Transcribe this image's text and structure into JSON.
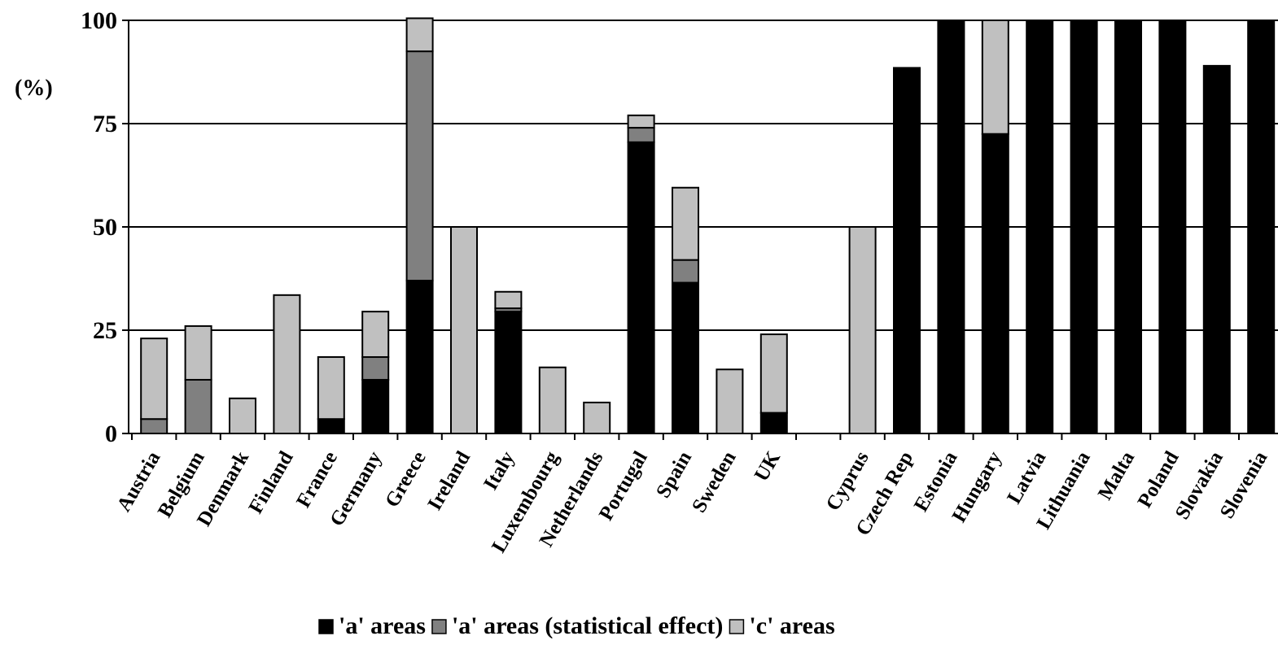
{
  "chart_data": {
    "type": "bar",
    "stacked": true,
    "ylabel": "(%)",
    "ylim": [
      0,
      100
    ],
    "yticks": [
      0,
      25,
      50,
      75,
      100
    ],
    "grid": true,
    "legend_position": "bottom",
    "categories": [
      "Austria",
      "Belgium",
      "Denmark",
      "Finland",
      "France",
      "Germany",
      "Greece",
      "Ireland",
      "Italy",
      "Luxembourg",
      "Netherlands",
      "Portugal",
      "Spain",
      "Sweden",
      "UK",
      "",
      "Cyprus",
      "Czech Rep",
      "Estonia",
      "Hungary",
      "Latvia",
      "Lithuania",
      "Malta",
      "Poland",
      "Slovakia",
      "Slovenia"
    ],
    "series": [
      {
        "name": "'a' areas",
        "color": "#000000",
        "values": [
          0,
          0,
          0,
          0,
          3.5,
          13,
          37,
          0,
          29.5,
          0,
          0,
          70.5,
          36.5,
          0,
          5,
          0,
          0,
          88.5,
          100,
          72.5,
          100,
          100,
          100,
          100,
          89,
          100
        ]
      },
      {
        "name": "'a' areas (statistical effect)",
        "color": "#808080",
        "values": [
          3.5,
          13,
          0,
          0,
          0,
          5.5,
          55.5,
          0,
          0.8,
          0,
          0,
          3.5,
          5.5,
          0,
          0,
          0,
          0,
          0,
          0,
          0,
          0,
          0,
          0,
          0,
          0,
          0
        ]
      },
      {
        "name": "'c' areas",
        "color": "#c0c0c0",
        "values": [
          19.5,
          13,
          8.5,
          33.5,
          15,
          11,
          8,
          50,
          4,
          16,
          7.5,
          3,
          17.5,
          15.5,
          19,
          0,
          50,
          0,
          0,
          27.5,
          0,
          0,
          0,
          0,
          0,
          0
        ]
      }
    ]
  }
}
